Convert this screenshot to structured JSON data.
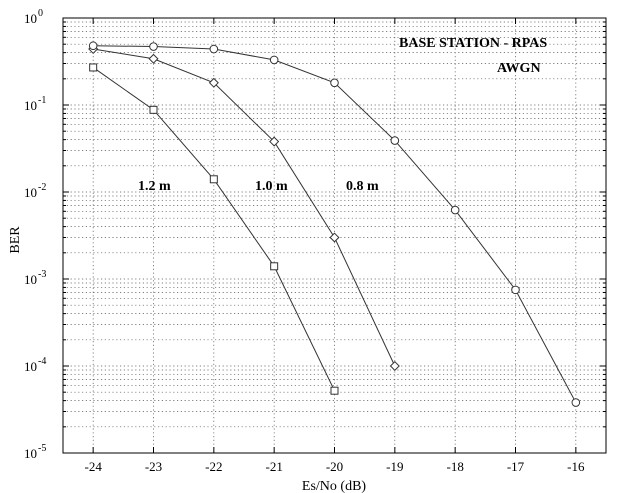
{
  "chart_data": {
    "type": "line",
    "title": "",
    "xlabel": "Es/No (dB)",
    "ylabel": "BER",
    "xlim": [
      -24.5,
      -15.5
    ],
    "ylim": [
      1e-05,
      1
    ],
    "yscale": "log",
    "grid": true,
    "x_ticks": [
      -24,
      -23,
      -22,
      -21,
      -20,
      -19,
      -18,
      -17,
      -16
    ],
    "x_tick_labels": [
      "-24",
      "-23",
      "-22",
      "-21",
      "-20",
      "-19",
      "-18",
      "-17",
      "-16"
    ],
    "y_tick_labels": [
      {
        "base": "10",
        "exp": "0"
      },
      {
        "base": "10",
        "exp": "-1"
      },
      {
        "base": "10",
        "exp": "-2"
      },
      {
        "base": "10",
        "exp": "-3"
      },
      {
        "base": "10",
        "exp": "-4"
      },
      {
        "base": "10",
        "exp": "-5"
      }
    ],
    "annotations": {
      "title_line1": "BASE STATION - RPAS",
      "title_line2": "AWGN",
      "label_12": "1.2 m",
      "label_10": "1.0 m",
      "label_08": "0.8 m"
    },
    "series": [
      {
        "name": "1.2 m",
        "marker": "square",
        "x": [
          -24,
          -23,
          -22,
          -21,
          -20
        ],
        "y": [
          0.27,
          0.088,
          0.014,
          0.0014,
          5.2e-05
        ]
      },
      {
        "name": "1.0 m",
        "marker": "diamond",
        "x": [
          -24,
          -23,
          -22,
          -21,
          -20,
          -19
        ],
        "y": [
          0.44,
          0.34,
          0.18,
          0.038,
          0.003,
          0.0001
        ]
      },
      {
        "name": "0.8 m",
        "marker": "circle",
        "x": [
          -24,
          -23,
          -22,
          -21,
          -20,
          -19,
          -18,
          -17,
          -16
        ],
        "y": [
          0.48,
          0.47,
          0.44,
          0.33,
          0.18,
          0.039,
          0.0062,
          0.00075,
          3.8e-05
        ]
      }
    ]
  }
}
